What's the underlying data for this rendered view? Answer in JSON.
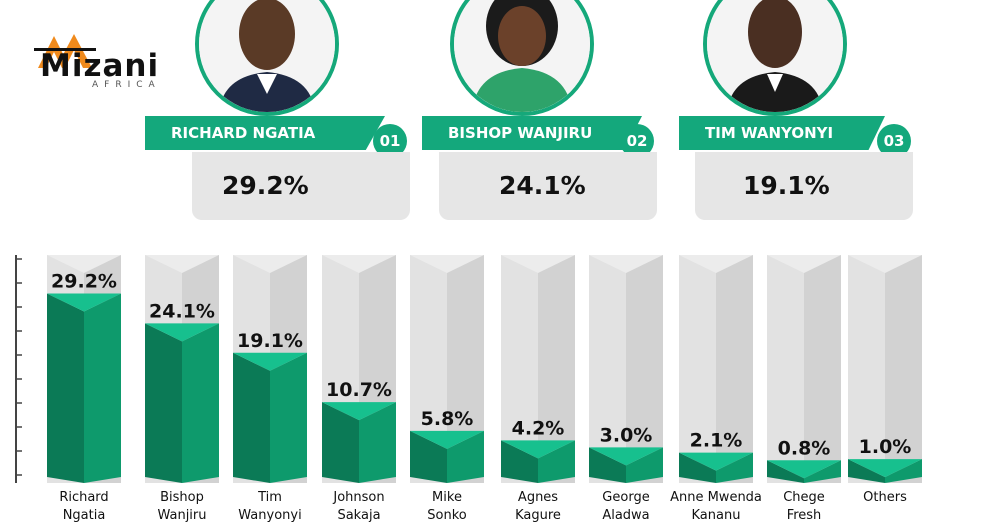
{
  "logo": {
    "text": "Mizani",
    "sub": "AFRICA",
    "icon": "scales-logo-icon"
  },
  "top_candidates": [
    {
      "name": "RICHARD NGATIA",
      "rank": "01",
      "percent": "29.2%"
    },
    {
      "name": "BISHOP WANJIRU",
      "rank": "02",
      "percent": "24.1%"
    },
    {
      "name": "TIM WANYONYI",
      "rank": "03",
      "percent": "19.1%"
    }
  ],
  "colors": {
    "accent": "#14a87c",
    "bar_front": "#0e9a6c",
    "bar_side": "#0b7a56",
    "bar_top": "#17c08e",
    "track": "#e2e2e2"
  },
  "chart_data": {
    "type": "bar",
    "title": "",
    "xlabel": "",
    "ylabel": "",
    "ylim": [
      0,
      32
    ],
    "categories": [
      [
        "Richard",
        "Ngatia"
      ],
      [
        "Bishop",
        "Wanjiru"
      ],
      [
        "Tim",
        "Wanyonyi"
      ],
      [
        "Johnson",
        "Sakaja"
      ],
      [
        "Mike",
        "Sonko"
      ],
      [
        "Agnes",
        "Kagure"
      ],
      [
        "George",
        "Aladwa"
      ],
      [
        "Anne Mwenda",
        "Kananu"
      ],
      [
        "Chege",
        "Fresh"
      ],
      [
        "Others",
        ""
      ]
    ],
    "values": [
      29.2,
      24.1,
      19.1,
      10.7,
      5.8,
      4.2,
      3.0,
      2.1,
      0.8,
      1.0
    ],
    "value_labels": [
      "29.2%",
      "24.1%",
      "19.1%",
      "10.7%",
      "5.8%",
      "4.2%",
      "3.0%",
      "2.1%",
      "0.8%",
      "1.0%"
    ]
  }
}
